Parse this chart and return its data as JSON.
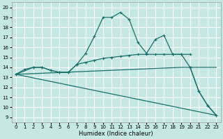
{
  "xlabel": "Humidex (Indice chaleur)",
  "background_color": "#c5e8e5",
  "grid_color": "#ffffff",
  "line_color": "#1a6e6a",
  "xlim": [
    -0.5,
    23.5
  ],
  "ylim": [
    8.5,
    20.5
  ],
  "xticks": [
    0,
    1,
    2,
    3,
    4,
    5,
    6,
    7,
    8,
    9,
    10,
    11,
    12,
    13,
    14,
    15,
    16,
    17,
    18,
    19,
    20,
    21,
    22,
    23
  ],
  "yticks": [
    9,
    10,
    11,
    12,
    13,
    14,
    15,
    16,
    17,
    18,
    19,
    20
  ],
  "curve1_x": [
    0,
    1,
    2,
    3,
    4,
    5,
    6,
    7,
    8,
    9,
    10,
    11,
    12,
    13,
    14,
    15,
    16,
    17,
    18,
    19,
    20,
    21,
    22,
    23
  ],
  "curve1_y": [
    13.3,
    13.8,
    14.0,
    14.0,
    13.7,
    13.5,
    13.5,
    14.3,
    15.4,
    17.1,
    19.0,
    19.0,
    19.5,
    18.8,
    16.5,
    15.4,
    16.8,
    17.2,
    15.3,
    15.3,
    14.0,
    11.6,
    10.2,
    9.2
  ],
  "curve2_x": [
    0,
    2,
    3,
    4,
    5,
    6,
    7,
    8,
    9,
    10,
    11,
    12,
    13,
    14,
    15,
    16,
    17,
    18,
    19,
    20
  ],
  "curve2_y": [
    13.3,
    14.0,
    14.0,
    13.7,
    13.5,
    13.5,
    14.3,
    14.5,
    14.7,
    14.9,
    15.0,
    15.1,
    15.2,
    15.3,
    15.3,
    15.3,
    15.3,
    15.3,
    15.3,
    15.3
  ],
  "curve3_x": [
    0,
    19,
    20,
    21,
    22,
    23
  ],
  "curve3_y": [
    13.3,
    14.0,
    14.0,
    14.0,
    14.0,
    14.0
  ],
  "curve4_x": [
    0,
    23
  ],
  "curve4_y": [
    13.3,
    9.2
  ],
  "curve5_x": [
    20,
    21,
    22,
    23
  ],
  "curve5_y": [
    14.0,
    11.6,
    10.2,
    9.2
  ]
}
